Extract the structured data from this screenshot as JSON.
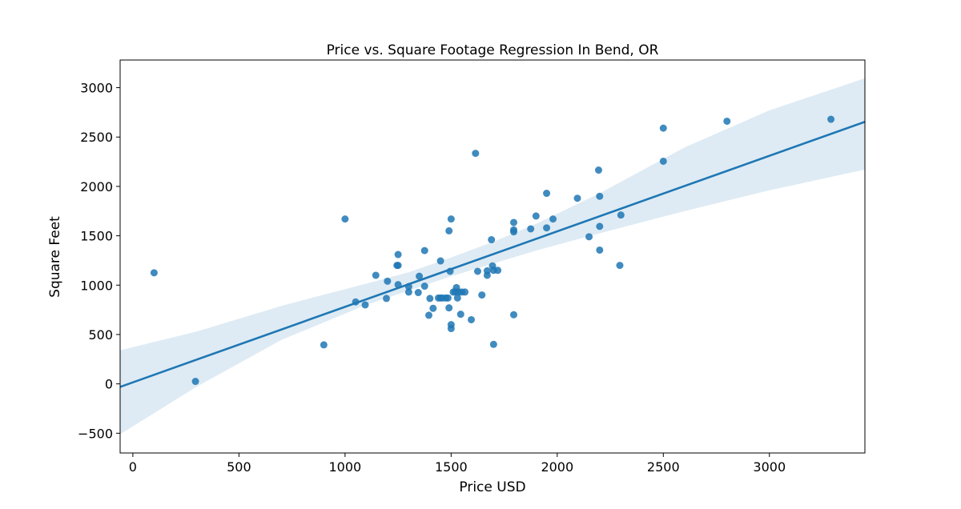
{
  "chart_data": {
    "type": "scatter",
    "title": "Price vs. Square Footage Regression In Bend, OR",
    "xlabel": "Price USD",
    "ylabel": "Square Feet",
    "xlim": [
      -60,
      3450
    ],
    "ylim": [
      -700,
      3280
    ],
    "xticks": [
      0,
      500,
      1000,
      1500,
      2000,
      2500,
      3000
    ],
    "yticks": [
      -500,
      0,
      500,
      1000,
      1500,
      2000,
      2500,
      3000
    ],
    "grid": false,
    "point_color": "#1f77b4",
    "line_color": "#1f77b4",
    "band_color": "#1f77b4",
    "points": [
      [
        100,
        1125
      ],
      [
        295,
        25
      ],
      [
        900,
        395
      ],
      [
        1000,
        1670
      ],
      [
        1050,
        830
      ],
      [
        1095,
        800
      ],
      [
        1145,
        1100
      ],
      [
        1195,
        865
      ],
      [
        1200,
        1040
      ],
      [
        1245,
        1200
      ],
      [
        1250,
        1200
      ],
      [
        1250,
        1310
      ],
      [
        1250,
        1005
      ],
      [
        1300,
        930
      ],
      [
        1300,
        985
      ],
      [
        1345,
        925
      ],
      [
        1350,
        1090
      ],
      [
        1375,
        990
      ],
      [
        1375,
        1350
      ],
      [
        1395,
        695
      ],
      [
        1400,
        865
      ],
      [
        1415,
        765
      ],
      [
        1440,
        870
      ],
      [
        1450,
        870
      ],
      [
        1450,
        1245
      ],
      [
        1460,
        870
      ],
      [
        1475,
        870
      ],
      [
        1485,
        870
      ],
      [
        1490,
        770
      ],
      [
        1490,
        1550
      ],
      [
        1495,
        1140
      ],
      [
        1500,
        600
      ],
      [
        1500,
        560
      ],
      [
        1500,
        1670
      ],
      [
        1510,
        930
      ],
      [
        1520,
        930
      ],
      [
        1525,
        975
      ],
      [
        1530,
        870
      ],
      [
        1535,
        930
      ],
      [
        1545,
        705
      ],
      [
        1550,
        930
      ],
      [
        1565,
        930
      ],
      [
        1595,
        650
      ],
      [
        1615,
        2335
      ],
      [
        1625,
        1140
      ],
      [
        1645,
        900
      ],
      [
        1670,
        1100
      ],
      [
        1670,
        1145
      ],
      [
        1690,
        1460
      ],
      [
        1695,
        1195
      ],
      [
        1700,
        1150
      ],
      [
        1700,
        400
      ],
      [
        1720,
        1150
      ],
      [
        1795,
        1635
      ],
      [
        1795,
        1560
      ],
      [
        1795,
        1540
      ],
      [
        1795,
        700
      ],
      [
        1875,
        1570
      ],
      [
        1900,
        1700
      ],
      [
        1950,
        1930
      ],
      [
        1950,
        1580
      ],
      [
        1980,
        1670
      ],
      [
        2095,
        1880
      ],
      [
        2150,
        1490
      ],
      [
        2195,
        2165
      ],
      [
        2200,
        1900
      ],
      [
        2200,
        1595
      ],
      [
        2200,
        1355
      ],
      [
        2295,
        1200
      ],
      [
        2300,
        1710
      ],
      [
        2500,
        2590
      ],
      [
        2500,
        2255
      ],
      [
        2800,
        2660
      ],
      [
        3290,
        2680
      ]
    ],
    "regression": {
      "intercept": 15,
      "slope": 0.765
    },
    "confidence_band": [
      {
        "x": -60,
        "lower": -510,
        "upper": 340
      },
      {
        "x": 300,
        "lower": -30,
        "upper": 530
      },
      {
        "x": 700,
        "lower": 445,
        "upper": 790
      },
      {
        "x": 1100,
        "lower": 800,
        "upper": 1015
      },
      {
        "x": 1300,
        "lower": 945,
        "upper": 1130
      },
      {
        "x": 1500,
        "lower": 1090,
        "upper": 1280
      },
      {
        "x": 1700,
        "lower": 1220,
        "upper": 1440
      },
      {
        "x": 1900,
        "lower": 1350,
        "upper": 1620
      },
      {
        "x": 2200,
        "lower": 1525,
        "upper": 1930
      },
      {
        "x": 2600,
        "lower": 1750,
        "upper": 2395
      },
      {
        "x": 3000,
        "lower": 1960,
        "upper": 2770
      },
      {
        "x": 3450,
        "lower": 2170,
        "upper": 3095
      }
    ]
  }
}
